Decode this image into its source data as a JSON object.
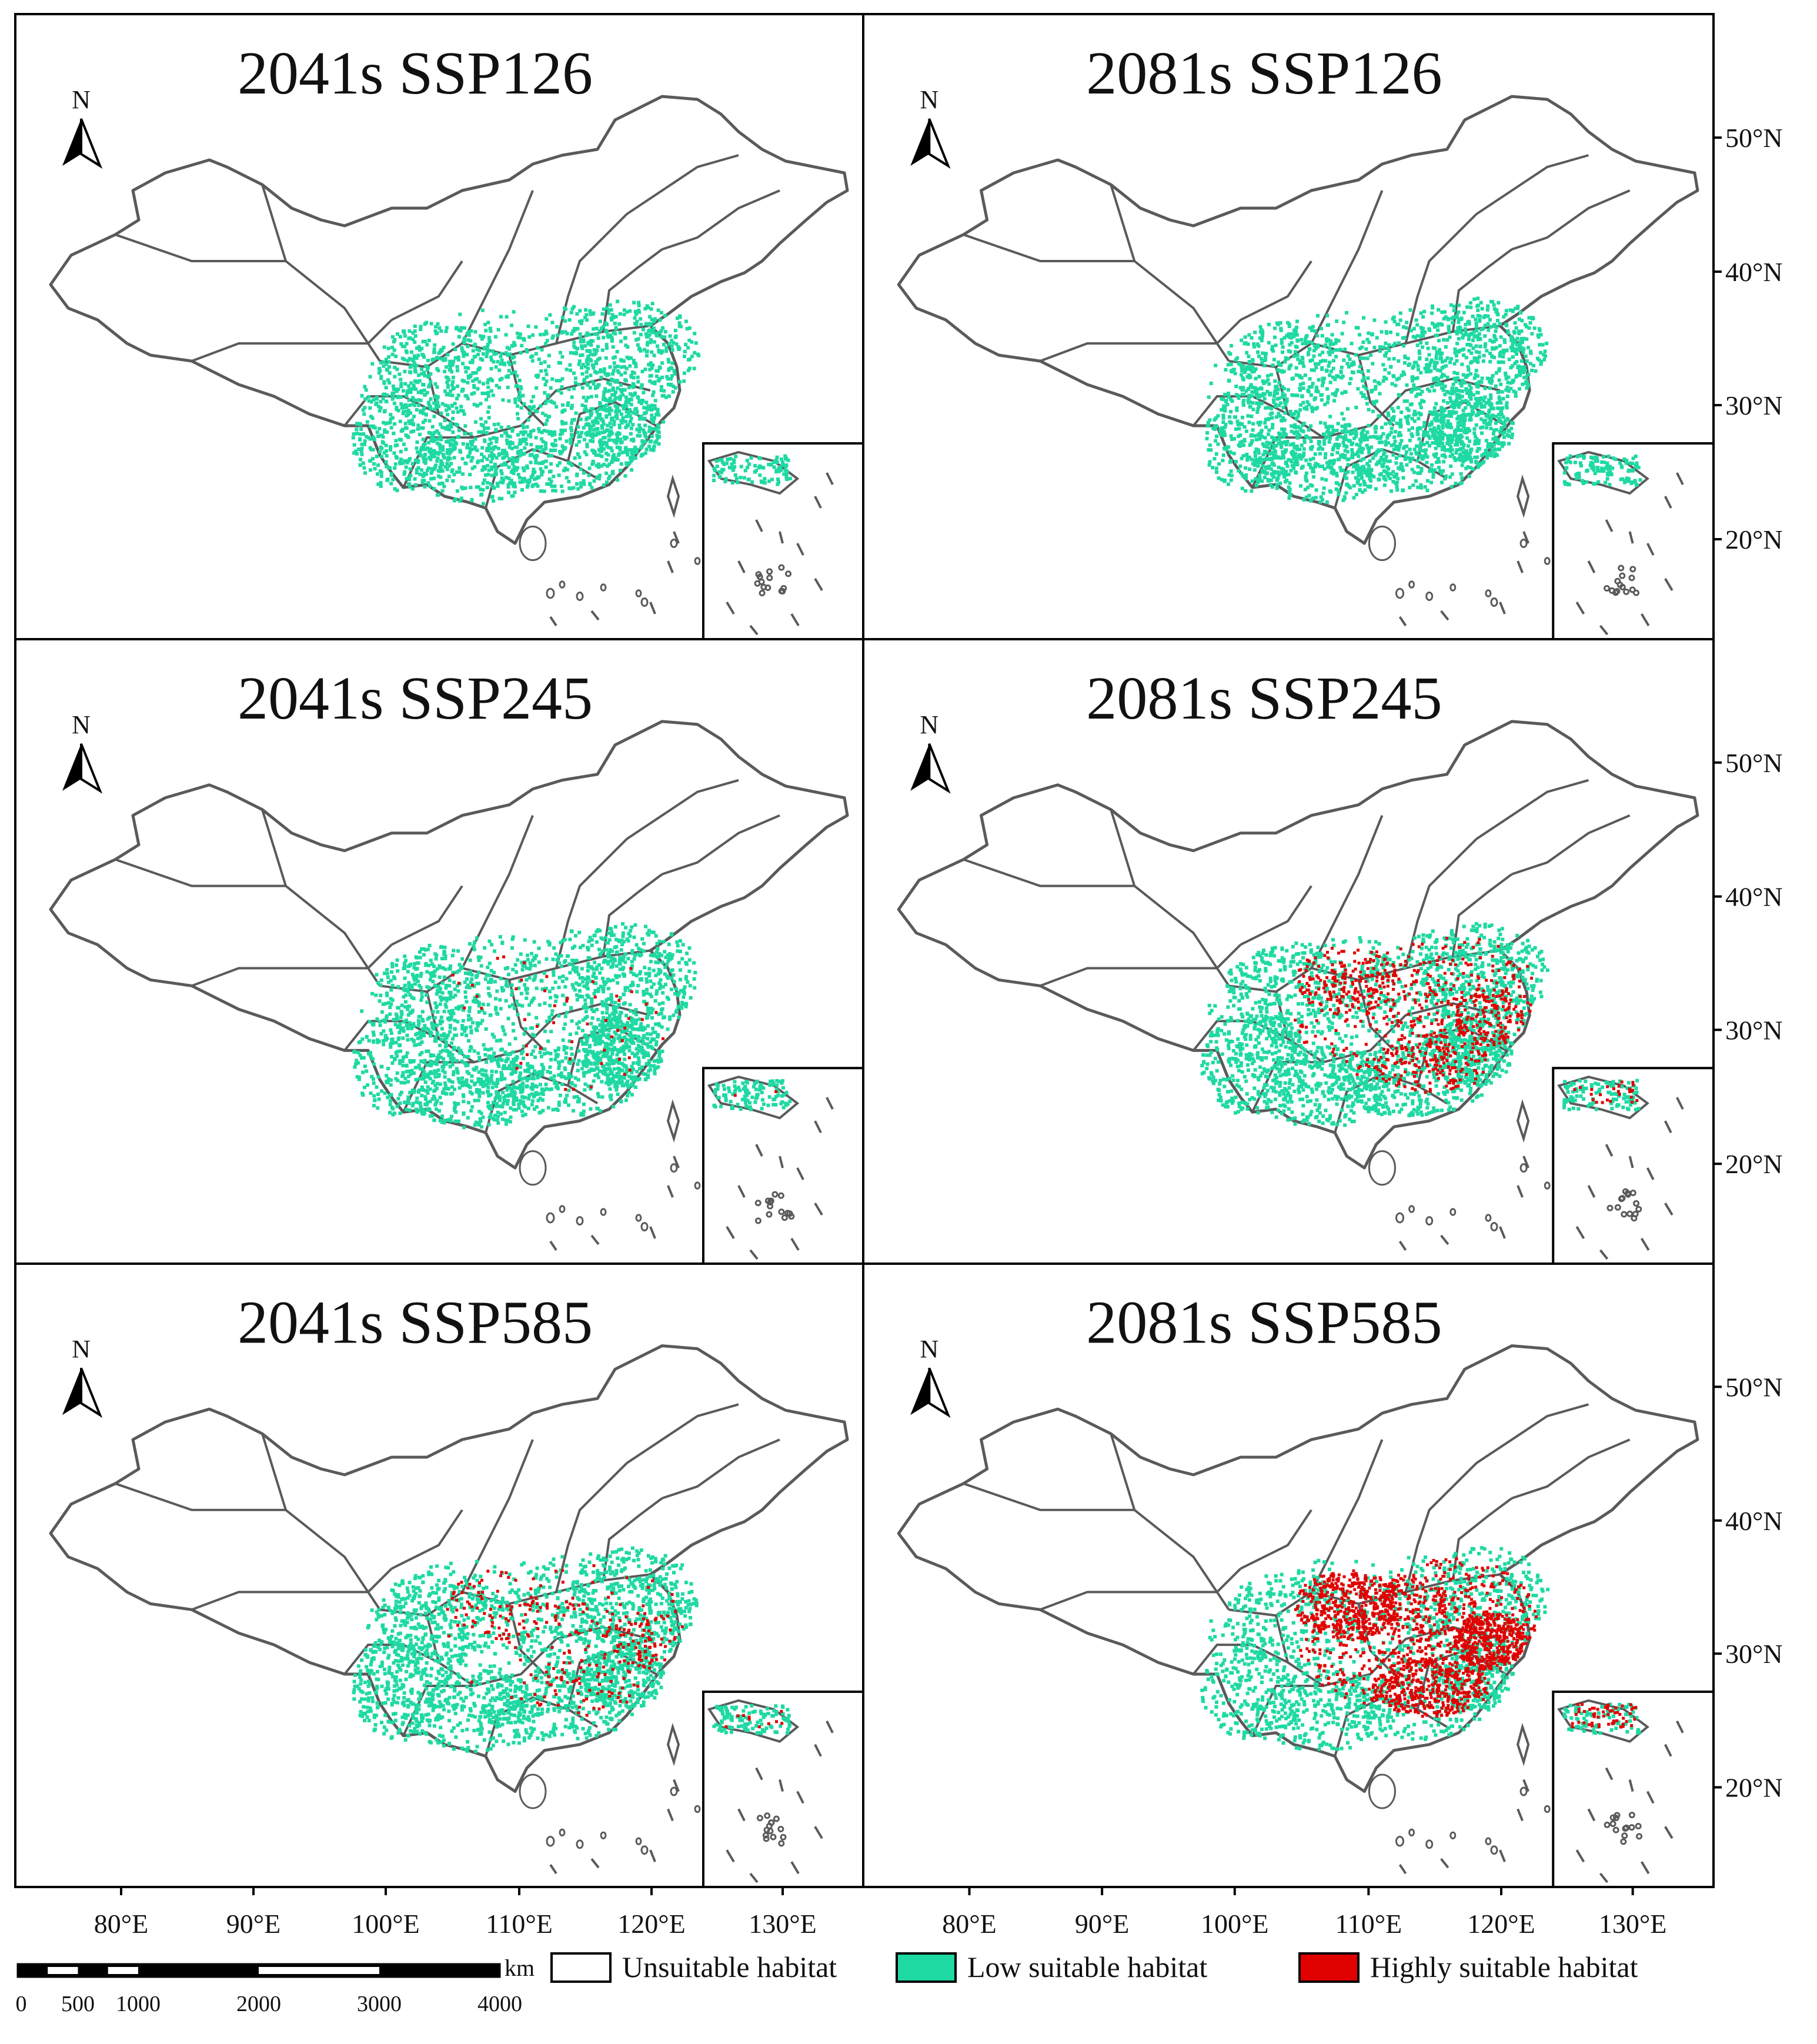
{
  "panels": [
    {
      "title": "2041s SSP126",
      "low_level": 0.85,
      "high_level": 0.0
    },
    {
      "title": "2081s SSP126",
      "low_level": 0.95,
      "high_level": 0.0
    },
    {
      "title": "2041s SSP245",
      "low_level": 0.9,
      "high_level": 0.02
    },
    {
      "title": "2081s SSP245",
      "low_level": 0.9,
      "high_level": 0.3
    },
    {
      "title": "2041s SSP585",
      "low_level": 0.9,
      "high_level": 0.12
    },
    {
      "title": "2081s SSP585",
      "low_level": 0.65,
      "high_level": 0.7
    }
  ],
  "north_label": "N",
  "lat_ticks": [
    "50°N",
    "40°N",
    "30°N",
    "20°N"
  ],
  "lon_ticks": [
    "80°E",
    "90°E",
    "100°E",
    "110°E",
    "120°E",
    "130°E"
  ],
  "scalebar": {
    "unit": "km",
    "labels": [
      "0",
      "500",
      "1000",
      "2000",
      "3000",
      "4000"
    ]
  },
  "legend": [
    {
      "label": "Unsuitable habitat",
      "color": "#ffffff"
    },
    {
      "label": "Low suitable habitat",
      "color": "#1fd9a3"
    },
    {
      "label": "Highly suitable habitat",
      "color": "#e00000"
    }
  ],
  "colors": {
    "border": "#000000",
    "outline": "#5a5a5a",
    "low": "#1fd9a3",
    "high": "#e00000"
  }
}
